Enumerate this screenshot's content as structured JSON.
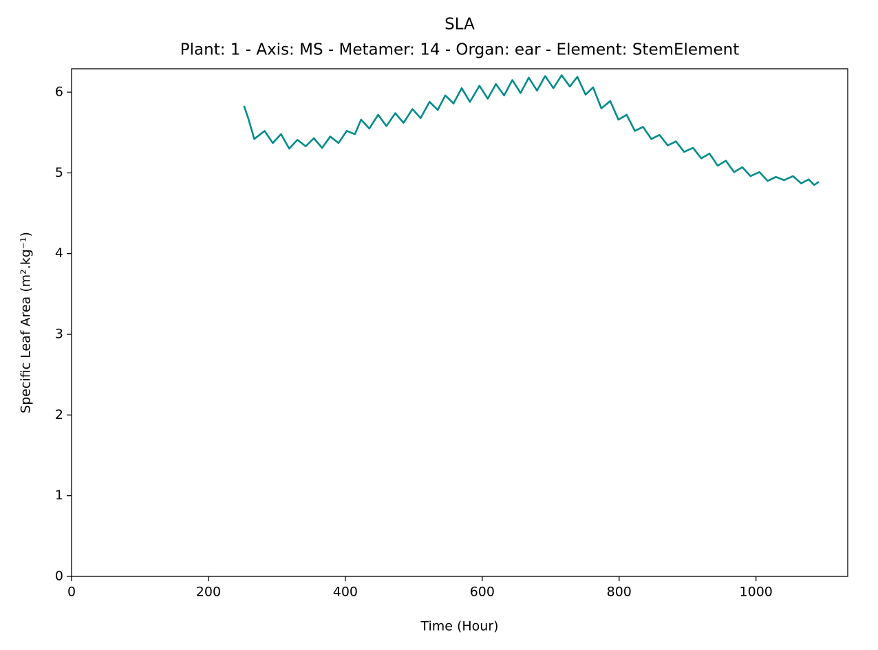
{
  "chart_data": {
    "type": "line",
    "title": "SLA",
    "subtitle": "Plant: 1 - Axis: MS - Metamer: 14 - Organ: ear - Element: StemElement",
    "xlabel": "Time (Hour)",
    "ylabel": "Specific Leaf Area (m².kg⁻¹)",
    "x": [
      252,
      258,
      267,
      282,
      294,
      306,
      318,
      330,
      342,
      354,
      366,
      378,
      390,
      402,
      414,
      423,
      435,
      448,
      460,
      473,
      485,
      498,
      510,
      523,
      535,
      546,
      558,
      570,
      582,
      596,
      608,
      620,
      632,
      644,
      656,
      668,
      680,
      692,
      704,
      716,
      728,
      739,
      751,
      762,
      774,
      787,
      799,
      811,
      823,
      835,
      847,
      859,
      871,
      883,
      895,
      908,
      920,
      932,
      944,
      956,
      968,
      980,
      992,
      1005,
      1017,
      1029,
      1041,
      1054,
      1066,
      1077,
      1085,
      1092
    ],
    "series": [
      {
        "color": "#008b8b",
        "values": [
          5.83,
          5.68,
          5.42,
          5.52,
          5.37,
          5.48,
          5.3,
          5.41,
          5.33,
          5.43,
          5.31,
          5.45,
          5.37,
          5.52,
          5.48,
          5.66,
          5.55,
          5.72,
          5.58,
          5.74,
          5.62,
          5.79,
          5.68,
          5.88,
          5.78,
          5.96,
          5.86,
          6.05,
          5.88,
          6.08,
          5.92,
          6.1,
          5.96,
          6.15,
          5.99,
          6.18,
          6.02,
          6.2,
          6.05,
          6.21,
          6.07,
          6.19,
          5.97,
          6.06,
          5.8,
          5.89,
          5.66,
          5.72,
          5.52,
          5.57,
          5.42,
          5.47,
          5.34,
          5.39,
          5.26,
          5.31,
          5.18,
          5.24,
          5.09,
          5.15,
          5.01,
          5.07,
          4.96,
          5.01,
          4.9,
          4.95,
          4.91,
          4.96,
          4.87,
          4.92,
          4.85,
          4.89
        ]
      }
    ],
    "xlim": [
      0,
      1134
    ],
    "xticks": [
      0,
      200,
      400,
      600,
      800,
      1000
    ],
    "ylim": [
      0,
      6.29
    ],
    "yticks": [
      0,
      1,
      2,
      3,
      4,
      5,
      6
    ],
    "grid": false
  }
}
